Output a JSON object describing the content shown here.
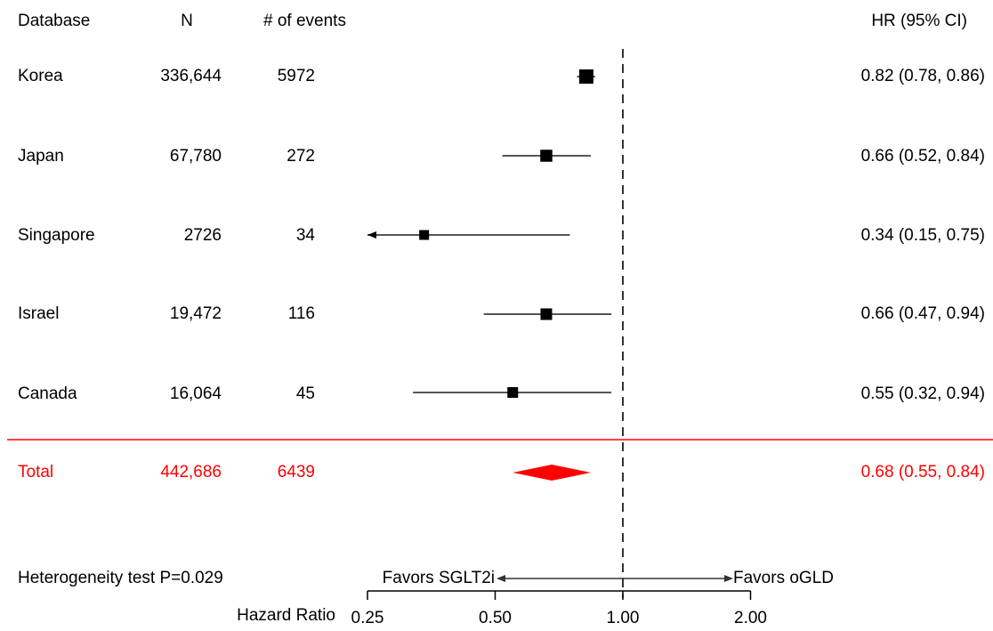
{
  "header": {
    "database": "Database",
    "n": "N",
    "events": "# of events",
    "hr": "HR (95% CI)"
  },
  "rows": [
    {
      "database": "Korea",
      "n": "336,644",
      "events": "5972",
      "hr_text": "0.82 (0.78, 0.86)"
    },
    {
      "database": "Japan",
      "n": "67,780",
      "events": "272",
      "hr_text": "0.66 (0.52, 0.84)"
    },
    {
      "database": "Singapore",
      "n": "2726",
      "events": "34",
      "hr_text": "0.34 (0.15, 0.75)"
    },
    {
      "database": "Israel",
      "n": "19,472",
      "events": "116",
      "hr_text": "0.66 (0.47, 0.94)"
    },
    {
      "database": "Canada",
      "n": "16,064",
      "events": "45",
      "hr_text": "0.55 (0.32, 0.94)"
    }
  ],
  "total": {
    "database": "Total",
    "n": "442,686",
    "events": "6439",
    "hr_text": "0.68 (0.55, 0.84)"
  },
  "heterogeneity": "Heterogeneity test P=0.029",
  "favors_left": "Favors SGLT2i",
  "favors_right": "Favors oGLD",
  "x_axis_title": "Hazard Ratio",
  "colors": {
    "total": "#ff0000",
    "points": "#000000",
    "ci_line": "#555555",
    "separator": "#ff0000"
  },
  "chart_data": {
    "type": "forest",
    "scale": "log2",
    "xlim": [
      0.25,
      2.0
    ],
    "reference_line": 1.0,
    "xticks": [
      0.25,
      0.5,
      1.0,
      2.0
    ],
    "xtick_labels": [
      "0.25",
      "0.50",
      "1.00",
      "2.00"
    ],
    "xlabel": "Hazard Ratio",
    "studies": [
      {
        "name": "Korea",
        "hr": 0.82,
        "lo": 0.78,
        "hi": 0.86,
        "weight": 1.0
      },
      {
        "name": "Japan",
        "hr": 0.66,
        "lo": 0.52,
        "hi": 0.84,
        "weight": 0.75
      },
      {
        "name": "Singapore",
        "hr": 0.34,
        "lo": 0.15,
        "hi": 0.75,
        "weight": 0.5
      },
      {
        "name": "Israel",
        "hr": 0.66,
        "lo": 0.47,
        "hi": 0.94,
        "weight": 0.7
      },
      {
        "name": "Canada",
        "hr": 0.55,
        "lo": 0.32,
        "hi": 0.94,
        "weight": 0.6
      }
    ],
    "pooled": {
      "name": "Total",
      "hr": 0.68,
      "lo": 0.55,
      "hi": 0.84
    }
  }
}
